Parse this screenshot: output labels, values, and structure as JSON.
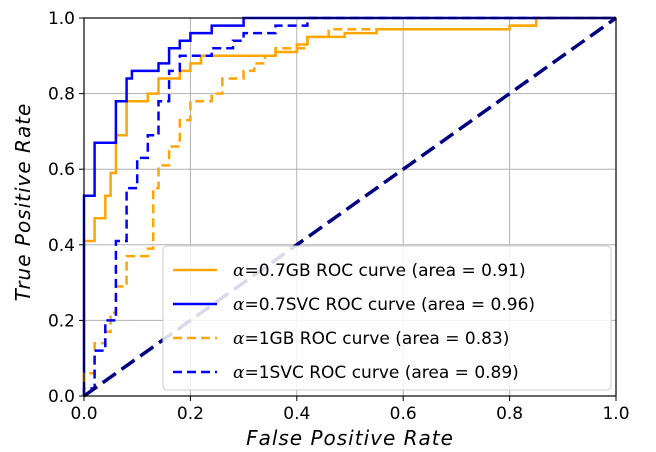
{
  "chart_data": {
    "type": "line",
    "title": "",
    "xlabel": "False Positive Rate",
    "ylabel": "True Positive Rate",
    "xlim": [
      0.0,
      1.0
    ],
    "ylim": [
      0.0,
      1.0
    ],
    "xticks": [
      "0.0",
      "0.2",
      "0.4",
      "0.6",
      "0.8",
      "1.0"
    ],
    "yticks": [
      "0.0",
      "0.2",
      "0.4",
      "0.6",
      "0.8",
      "1.0"
    ],
    "grid": true,
    "legend_position": "lower-right",
    "series": [
      {
        "name": "α=0.7GB ROC curve (area = 0.91)",
        "alpha_symbol": "α",
        "label_rest": "=0.7GB ROC curve (area = 0.91)",
        "color": "#FFA500",
        "dash": "solid",
        "points": [
          [
            0.0,
            0.0
          ],
          [
            0.0,
            0.41
          ],
          [
            0.02,
            0.41
          ],
          [
            0.02,
            0.47
          ],
          [
            0.04,
            0.47
          ],
          [
            0.04,
            0.53
          ],
          [
            0.05,
            0.53
          ],
          [
            0.05,
            0.59
          ],
          [
            0.06,
            0.59
          ],
          [
            0.06,
            0.69
          ],
          [
            0.08,
            0.69
          ],
          [
            0.08,
            0.78
          ],
          [
            0.12,
            0.78
          ],
          [
            0.12,
            0.8
          ],
          [
            0.14,
            0.8
          ],
          [
            0.14,
            0.84
          ],
          [
            0.18,
            0.84
          ],
          [
            0.18,
            0.86
          ],
          [
            0.2,
            0.86
          ],
          [
            0.2,
            0.88
          ],
          [
            0.22,
            0.88
          ],
          [
            0.22,
            0.9
          ],
          [
            0.36,
            0.9
          ],
          [
            0.36,
            0.91
          ],
          [
            0.4,
            0.91
          ],
          [
            0.4,
            0.93
          ],
          [
            0.42,
            0.93
          ],
          [
            0.42,
            0.95
          ],
          [
            0.49,
            0.95
          ],
          [
            0.49,
            0.96
          ],
          [
            0.55,
            0.96
          ],
          [
            0.55,
            0.97
          ],
          [
            0.8,
            0.97
          ],
          [
            0.8,
            0.98
          ],
          [
            0.85,
            0.98
          ],
          [
            0.85,
            1.0
          ],
          [
            1.0,
            1.0
          ]
        ]
      },
      {
        "name": "α=0.7SVC ROC curve (area = 0.96)",
        "alpha_symbol": "α",
        "label_rest": "=0.7SVC ROC curve (area = 0.96)",
        "color": "#0000FF",
        "dash": "solid",
        "points": [
          [
            0.0,
            0.0
          ],
          [
            0.0,
            0.53
          ],
          [
            0.02,
            0.53
          ],
          [
            0.02,
            0.67
          ],
          [
            0.06,
            0.67
          ],
          [
            0.06,
            0.78
          ],
          [
            0.08,
            0.78
          ],
          [
            0.08,
            0.84
          ],
          [
            0.09,
            0.84
          ],
          [
            0.09,
            0.86
          ],
          [
            0.14,
            0.86
          ],
          [
            0.14,
            0.88
          ],
          [
            0.16,
            0.88
          ],
          [
            0.16,
            0.92
          ],
          [
            0.18,
            0.92
          ],
          [
            0.18,
            0.94
          ],
          [
            0.2,
            0.94
          ],
          [
            0.2,
            0.96
          ],
          [
            0.24,
            0.96
          ],
          [
            0.24,
            0.98
          ],
          [
            0.3,
            0.98
          ],
          [
            0.3,
            1.0
          ],
          [
            1.0,
            1.0
          ]
        ]
      },
      {
        "name": "α=1GB ROC curve (area = 0.83)",
        "alpha_symbol": "α",
        "label_rest": "=1GB ROC curve (area = 0.83)",
        "color": "#FFA500",
        "dash": "dashed",
        "points": [
          [
            0.0,
            0.0
          ],
          [
            0.0,
            0.06
          ],
          [
            0.02,
            0.06
          ],
          [
            0.02,
            0.14
          ],
          [
            0.04,
            0.14
          ],
          [
            0.04,
            0.17
          ],
          [
            0.05,
            0.17
          ],
          [
            0.05,
            0.22
          ],
          [
            0.06,
            0.22
          ],
          [
            0.06,
            0.29
          ],
          [
            0.08,
            0.29
          ],
          [
            0.08,
            0.37
          ],
          [
            0.12,
            0.37
          ],
          [
            0.12,
            0.39
          ],
          [
            0.13,
            0.39
          ],
          [
            0.13,
            0.55
          ],
          [
            0.14,
            0.55
          ],
          [
            0.14,
            0.61
          ],
          [
            0.16,
            0.61
          ],
          [
            0.16,
            0.66
          ],
          [
            0.18,
            0.66
          ],
          [
            0.18,
            0.73
          ],
          [
            0.2,
            0.73
          ],
          [
            0.2,
            0.78
          ],
          [
            0.24,
            0.78
          ],
          [
            0.24,
            0.8
          ],
          [
            0.26,
            0.8
          ],
          [
            0.26,
            0.84
          ],
          [
            0.3,
            0.84
          ],
          [
            0.3,
            0.86
          ],
          [
            0.32,
            0.86
          ],
          [
            0.32,
            0.88
          ],
          [
            0.34,
            0.88
          ],
          [
            0.34,
            0.9
          ],
          [
            0.36,
            0.9
          ],
          [
            0.36,
            0.92
          ],
          [
            0.42,
            0.92
          ],
          [
            0.42,
            0.95
          ],
          [
            0.46,
            0.95
          ],
          [
            0.46,
            0.97
          ],
          [
            0.8,
            0.97
          ],
          [
            0.8,
            0.98
          ],
          [
            0.85,
            0.98
          ],
          [
            0.85,
            1.0
          ],
          [
            1.0,
            1.0
          ]
        ]
      },
      {
        "name": "α=1SVC ROC curve (area = 0.89)",
        "alpha_symbol": "α",
        "label_rest": "=1SVC ROC curve (area = 0.89)",
        "color": "#0000FF",
        "dash": "dashed",
        "points": [
          [
            0.0,
            0.0
          ],
          [
            0.0,
            0.02
          ],
          [
            0.02,
            0.02
          ],
          [
            0.02,
            0.12
          ],
          [
            0.04,
            0.12
          ],
          [
            0.04,
            0.2
          ],
          [
            0.06,
            0.2
          ],
          [
            0.06,
            0.41
          ],
          [
            0.08,
            0.41
          ],
          [
            0.08,
            0.55
          ],
          [
            0.1,
            0.55
          ],
          [
            0.1,
            0.63
          ],
          [
            0.12,
            0.63
          ],
          [
            0.12,
            0.69
          ],
          [
            0.14,
            0.69
          ],
          [
            0.14,
            0.78
          ],
          [
            0.16,
            0.78
          ],
          [
            0.16,
            0.86
          ],
          [
            0.18,
            0.86
          ],
          [
            0.18,
            0.9
          ],
          [
            0.24,
            0.9
          ],
          [
            0.24,
            0.92
          ],
          [
            0.28,
            0.92
          ],
          [
            0.28,
            0.94
          ],
          [
            0.3,
            0.94
          ],
          [
            0.3,
            0.96
          ],
          [
            0.36,
            0.96
          ],
          [
            0.36,
            0.98
          ],
          [
            0.42,
            0.98
          ],
          [
            0.42,
            1.0
          ],
          [
            1.0,
            1.0
          ]
        ]
      },
      {
        "name": "",
        "color": "#000080",
        "dash": "dashed",
        "points": [
          [
            0.0,
            0.0
          ],
          [
            1.0,
            1.0
          ]
        ]
      }
    ]
  }
}
